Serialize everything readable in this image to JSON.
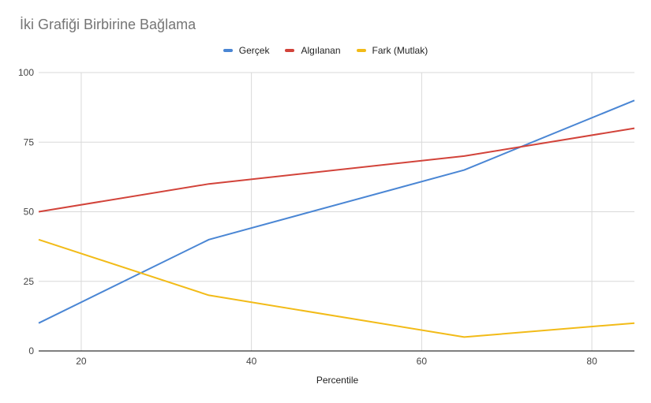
{
  "chart_data": {
    "type": "line",
    "title": "İki Grafiği Birbirine Bağlama",
    "xlabel": "Percentile",
    "ylabel": "",
    "x": [
      15,
      35,
      65,
      85
    ],
    "xlim": [
      15,
      85
    ],
    "ylim": [
      0,
      100
    ],
    "xticks": [
      20,
      40,
      60,
      80
    ],
    "yticks": [
      0,
      25,
      50,
      75,
      100
    ],
    "grid": true,
    "legend_position": "top",
    "series": [
      {
        "name": "Gerçek",
        "color": "#4a86d4",
        "values": [
          10,
          40,
          65,
          90
        ]
      },
      {
        "name": "Algılanan",
        "color": "#d2433a",
        "values": [
          50,
          60,
          70,
          80
        ]
      },
      {
        "name": "Fark (Mutlak)",
        "color": "#f2bb18",
        "values": [
          40,
          20,
          5,
          10
        ]
      }
    ]
  },
  "legend": [
    {
      "label": "Gerçek",
      "color": "#4a86d4"
    },
    {
      "label": "Algılanan",
      "color": "#d2433a"
    },
    {
      "label": "Fark (Mutlak)",
      "color": "#f2bb18"
    }
  ]
}
